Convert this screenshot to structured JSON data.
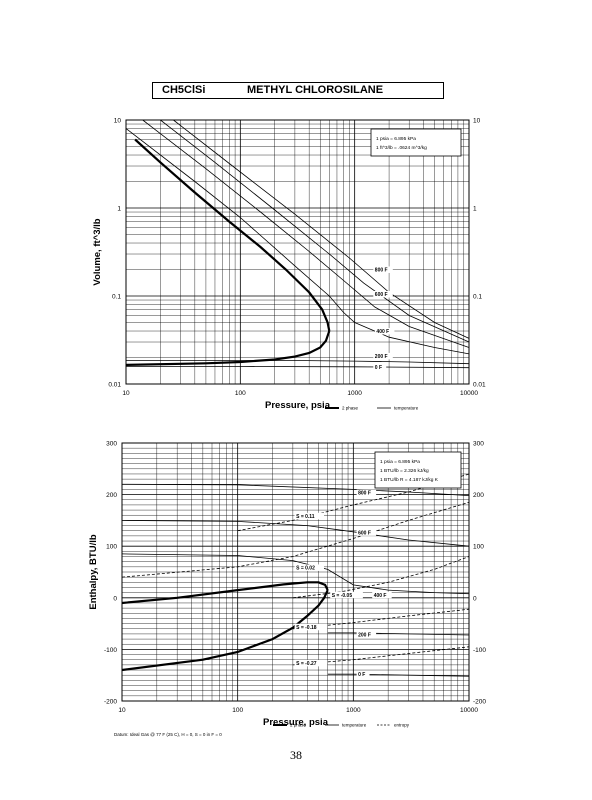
{
  "header": {
    "formula": "CH5ClSi",
    "name": "METHYL CHLOROSILANE"
  },
  "page_number": "38",
  "chart_data": [
    {
      "type": "line",
      "x_scale": "log",
      "y_scale": "log",
      "xlabel": "Pressure,  psia",
      "ylabel": "Volume, ft^3/lb",
      "xlim": [
        10,
        10000
      ],
      "ylim": [
        0.01,
        10
      ],
      "x_ticks": [
        10,
        100,
        1000,
        10000
      ],
      "x_tick_labels": [
        "10",
        "100",
        "1000",
        "10000"
      ],
      "y_ticks": [
        0.01,
        0.1,
        1,
        10
      ],
      "y_tick_labels": [
        "0.01",
        "0.1",
        "1",
        "10"
      ],
      "grid": true,
      "legend_position": "bottom-right",
      "legend": [
        {
          "label": "2 phase",
          "style": "thick"
        },
        {
          "label": "temperature",
          "style": "thin"
        }
      ],
      "notes": [
        "1 psia = 6.895 kPa",
        "1 ft^3/lb = .0624 m^3/kg"
      ],
      "series": [
        {
          "kind": "two-phase-vapor",
          "points": [
            [
              12,
              6.0
            ],
            [
              20,
              3.3
            ],
            [
              40,
              1.5
            ],
            [
              80,
              0.7
            ],
            [
              150,
              0.36
            ],
            [
              250,
              0.2
            ],
            [
              400,
              0.11
            ],
            [
              520,
              0.07
            ],
            [
              580,
              0.05
            ],
            [
              600,
              0.04
            ]
          ]
        },
        {
          "kind": "two-phase-liquid",
          "points": [
            [
              10,
              0.0165
            ],
            [
              50,
              0.0172
            ],
            [
              100,
              0.0178
            ],
            [
              200,
              0.019
            ],
            [
              300,
              0.0205
            ],
            [
              400,
              0.0225
            ],
            [
              500,
              0.026
            ],
            [
              560,
              0.031
            ],
            [
              600,
              0.04
            ]
          ]
        },
        {
          "name": "0 F",
          "kind": "temperature",
          "points": [
            [
              10,
              0.0158
            ],
            [
              100,
              0.0158
            ],
            [
              1000,
              0.0157
            ],
            [
              10000,
              0.0153
            ]
          ]
        },
        {
          "name": "200 F",
          "kind": "temperature",
          "points": [
            [
              10,
              0.0185
            ],
            [
              300,
              0.0185
            ],
            [
              1000,
              0.0182
            ],
            [
              3000,
              0.0178
            ],
            [
              10000,
              0.017
            ]
          ]
        },
        {
          "name": "400 F",
          "kind": "temperature",
          "points": [
            [
              10,
              8.0
            ],
            [
              40,
              2.0
            ],
            [
              100,
              0.78
            ],
            [
              300,
              0.22
            ],
            [
              600,
              0.1
            ],
            [
              800,
              0.065
            ],
            [
              1000,
              0.05
            ],
            [
              2000,
              0.034
            ],
            [
              5000,
              0.026
            ],
            [
              10000,
              0.022
            ]
          ]
        },
        {
          "name": "600 F",
          "kind": "temperature",
          "points": [
            [
              14,
              10.0
            ],
            [
              50,
              2.8
            ],
            [
              150,
              0.9
            ],
            [
              400,
              0.32
            ],
            [
              800,
              0.15
            ],
            [
              1500,
              0.075
            ],
            [
              3000,
              0.045
            ],
            [
              10000,
              0.026
            ]
          ]
        },
        {
          "name": "800 F",
          "kind": "temperature",
          "points": [
            [
              20,
              10.0
            ],
            [
              60,
              3.3
            ],
            [
              200,
              0.95
            ],
            [
              600,
              0.3
            ],
            [
              1200,
              0.14
            ],
            [
              3000,
              0.06
            ],
            [
              10000,
              0.03
            ]
          ]
        },
        {
          "name": "",
          "kind": "temperature",
          "points": [
            [
              26,
              10.0
            ],
            [
              80,
              3.2
            ],
            [
              300,
              0.85
            ],
            [
              900,
              0.27
            ],
            [
              2000,
              0.11
            ],
            [
              5000,
              0.05
            ],
            [
              10000,
              0.033
            ]
          ]
        }
      ],
      "curve_labels": [
        {
          "text": "800 F",
          "x": 1500,
          "y": 0.19
        },
        {
          "text": "600 F",
          "x": 1500,
          "y": 0.1
        },
        {
          "text": "400 F",
          "x": 1550,
          "y": 0.038
        },
        {
          "text": "200 F",
          "x": 1500,
          "y": 0.0198
        },
        {
          "text": "0 F",
          "x": 1500,
          "y": 0.0148
        }
      ]
    },
    {
      "type": "line",
      "x_scale": "log",
      "y_scale": "linear",
      "xlabel": "Pressure,  psia",
      "ylabel": "Enthalpy, BTU/lb",
      "xlim": [
        10,
        10000
      ],
      "ylim": [
        -200,
        300
      ],
      "x_ticks": [
        10,
        100,
        1000,
        10000
      ],
      "x_tick_labels": [
        "10",
        "100",
        "1000",
        "10000"
      ],
      "y_ticks": [
        -200,
        -100,
        0,
        100,
        200,
        300
      ],
      "y_tick_labels": [
        "-200",
        "-100",
        "0",
        "100",
        "200",
        "300"
      ],
      "grid": true,
      "legend_position": "bottom-right",
      "legend": [
        {
          "label": "2 phase",
          "style": "thick"
        },
        {
          "label": "temperature",
          "style": "thin"
        },
        {
          "label": "entropy",
          "style": "dashed"
        }
      ],
      "notes": [
        "1 psia = 6.895 kPa",
        "1 BTU/lb = 2.326 kJ/kg",
        "1 BTU/lb R = 4.187 kJ/kg K"
      ],
      "footnote": "Datum: Ideal Gas @ 77 F (25 C), H = 0, S = 0 in F = 0",
      "series": [
        {
          "kind": "two-phase-vapor",
          "points": [
            [
              10,
              -10
            ],
            [
              30,
              0
            ],
            [
              100,
              15
            ],
            [
              250,
              26
            ],
            [
              400,
              30
            ],
            [
              500,
              30
            ],
            [
              570,
              25
            ],
            [
              600,
              15
            ]
          ]
        },
        {
          "kind": "two-phase-liquid",
          "points": [
            [
              10,
              -140
            ],
            [
              50,
              -120
            ],
            [
              100,
              -105
            ],
            [
              200,
              -80
            ],
            [
              300,
              -58
            ],
            [
              400,
              -35
            ],
            [
              500,
              -15
            ],
            [
              560,
              0
            ],
            [
              600,
              15
            ]
          ]
        },
        {
          "name": "800 F",
          "kind": "temperature",
          "points": [
            [
              10,
              220
            ],
            [
              100,
              219
            ],
            [
              1000,
              210
            ],
            [
              3000,
              205
            ],
            [
              10000,
              198
            ]
          ]
        },
        {
          "name": "600 F",
          "kind": "temperature",
          "points": [
            [
              10,
              150
            ],
            [
              100,
              148
            ],
            [
              400,
              140
            ],
            [
              1000,
              128
            ],
            [
              3000,
              112
            ],
            [
              10000,
              100
            ]
          ]
        },
        {
          "name": "400 F",
          "kind": "temperature",
          "points": [
            [
              10,
              85
            ],
            [
              100,
              82
            ],
            [
              300,
              72
            ],
            [
              600,
              55
            ],
            [
              1000,
              25
            ],
            [
              2000,
              15
            ],
            [
              5000,
              10
            ],
            [
              10000,
              8
            ]
          ]
        },
        {
          "name": "200 F",
          "kind": "temperature",
          "points": [
            [
              600,
              -68
            ],
            [
              1000,
              -68
            ],
            [
              3000,
              -70
            ],
            [
              10000,
              -72
            ]
          ]
        },
        {
          "name": "0 F",
          "kind": "temperature",
          "points": [
            [
              600,
              -148
            ],
            [
              1000,
              -148
            ],
            [
              3000,
              -150
            ],
            [
              10000,
              -152
            ]
          ]
        },
        {
          "name": "S = 0.11",
          "kind": "entropy",
          "points": [
            [
              100,
              130
            ],
            [
              300,
              150
            ],
            [
              1000,
              180
            ],
            [
              3000,
              205
            ],
            [
              10000,
              240
            ]
          ]
        },
        {
          "name": "S = 0.02",
          "kind": "entropy",
          "points": [
            [
              10,
              40
            ],
            [
              100,
              60
            ],
            [
              300,
              80
            ],
            [
              1000,
              115
            ],
            [
              3000,
              150
            ],
            [
              10000,
              185
            ]
          ]
        },
        {
          "name": "S = -0.05",
          "kind": "entropy",
          "points": [
            [
              300,
              0
            ],
            [
              800,
              12
            ],
            [
              2000,
              30
            ],
            [
              5000,
              55
            ],
            [
              10000,
              80
            ]
          ]
        },
        {
          "name": "S = -0.18",
          "kind": "entropy",
          "points": [
            [
              300,
              -60
            ],
            [
              1000,
              -48
            ],
            [
              3000,
              -35
            ],
            [
              10000,
              -22
            ]
          ]
        },
        {
          "name": "S = -0.27",
          "kind": "entropy",
          "points": [
            [
              300,
              -130
            ],
            [
              1000,
              -120
            ],
            [
              3000,
              -108
            ],
            [
              10000,
              -95
            ]
          ]
        }
      ],
      "curve_labels": [
        {
          "text": "800 F",
          "x": 1100,
          "y": 200
        },
        {
          "text": "600 F",
          "x": 1100,
          "y": 123
        },
        {
          "text": "400 F",
          "x": 1500,
          "y": 2
        },
        {
          "text": "200 F",
          "x": 1100,
          "y": -75
        },
        {
          "text": "0 F",
          "x": 1100,
          "y": -152
        },
        {
          "text": "S = 0.11",
          "x": 320,
          "y": 155
        },
        {
          "text": "S = 0.02",
          "x": 320,
          "y": 55
        },
        {
          "text": "S = -0.05",
          "x": 650,
          "y": 2
        },
        {
          "text": "S = -0.18",
          "x": 320,
          "y": -60
        },
        {
          "text": "S = -0.27",
          "x": 320,
          "y": -130
        }
      ]
    }
  ]
}
